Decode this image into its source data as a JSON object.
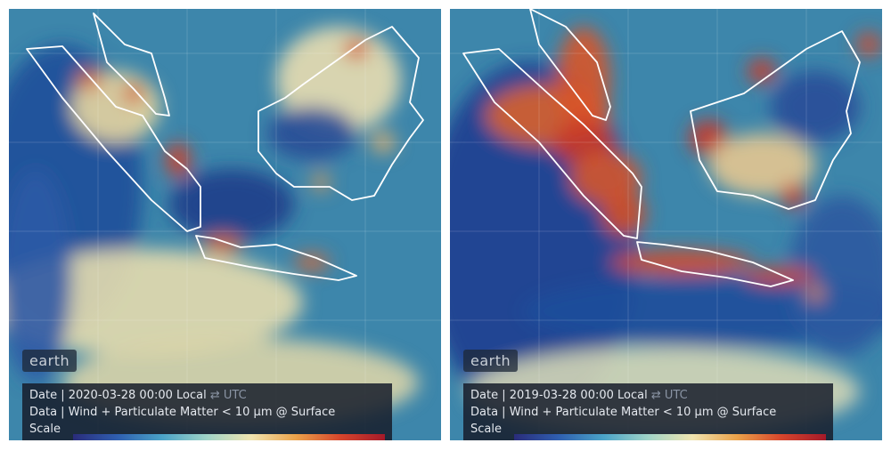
{
  "panels": [
    {
      "badge": "earth",
      "date_label": "Date |",
      "date": "2020-03-28 00:00 Local",
      "swap": "⇄ UTC",
      "data_label": "Data |",
      "data": "Wind + Particulate Matter < 10 µm @ Surface",
      "scale_label": "Scale |"
    },
    {
      "badge": "earth",
      "date_label": "Date |",
      "date": "2019-03-28 00:00 Local",
      "swap": "⇄ UTC",
      "data_label": "Data |",
      "data": "Wind + Particulate Matter < 10 µm @ Surface",
      "scale_label": "Scale |"
    }
  ]
}
